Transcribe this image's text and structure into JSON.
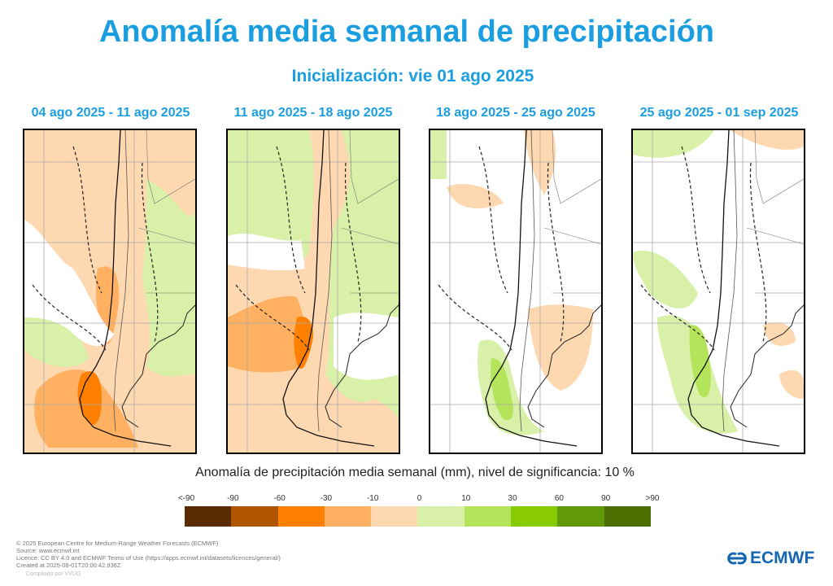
{
  "title": "Anomalía media semanal de precipitación",
  "subtitle": "Inicialización: vie 01 ago 2025",
  "panels": [
    {
      "label": "04 ago 2025 - 11 ago 2025"
    },
    {
      "label": "11 ago 2025 - 18 ago 2025"
    },
    {
      "label": "18 ago 2025 - 25 ago 2025"
    },
    {
      "label": "25 ago 2025 - 01 sep 2025"
    }
  ],
  "colorbar": {
    "title": "Anomalía de precipitación media semanal (mm), nivel de significancia: 10 %",
    "labels": [
      "<-90",
      "-90",
      "-60",
      "-30",
      "-10",
      "0",
      "10",
      "30",
      "60",
      "90",
      ">90"
    ],
    "colors": [
      "#5a2a00",
      "#b05500",
      "#ff8000",
      "#ffb060",
      "#fed8b0",
      "#d8f0a8",
      "#b4e45a",
      "#88cc00",
      "#62990a",
      "#4d6e00"
    ]
  },
  "footer": {
    "lines": [
      "© 2025 European Centre for Medium-Range Weather Forecasts (ECMWF)",
      "Source: www.ecmwf.int",
      "Licence: CC BY 4.0 and ECMWF Terms of Use (https://apps.ecmwf.int/datasets/licences/general/)",
      "Created at 2025-08-01T20:00:42.936Z"
    ],
    "compiled": "Compilado por VVUG"
  },
  "logo": {
    "text": "ECMWF"
  }
}
